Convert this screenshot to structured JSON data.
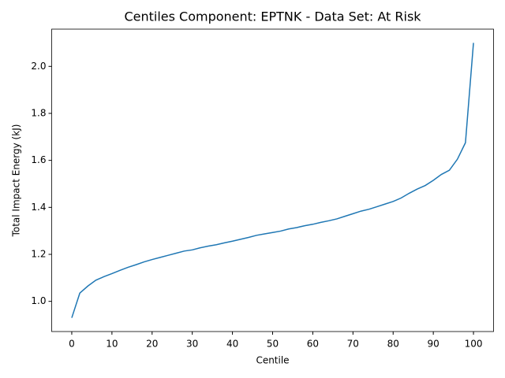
{
  "chart_data": {
    "type": "line",
    "title": "Centiles Component: EPTNK - Data Set: At Risk",
    "x_label": "Centile",
    "y_label": "Total Impact Energy (kJ)",
    "x": [
      0,
      2,
      4,
      6,
      8,
      10,
      12,
      14,
      16,
      18,
      20,
      22,
      24,
      26,
      28,
      30,
      32,
      34,
      36,
      38,
      40,
      42,
      44,
      46,
      48,
      50,
      52,
      54,
      56,
      58,
      60,
      62,
      64,
      66,
      68,
      70,
      72,
      74,
      76,
      78,
      80,
      82,
      84,
      86,
      88,
      90,
      92,
      94,
      96,
      98,
      100
    ],
    "values": [
      0.93,
      1.035,
      1.065,
      1.09,
      1.105,
      1.118,
      1.132,
      1.145,
      1.156,
      1.168,
      1.178,
      1.187,
      1.196,
      1.205,
      1.214,
      1.219,
      1.228,
      1.235,
      1.241,
      1.249,
      1.256,
      1.264,
      1.272,
      1.281,
      1.287,
      1.293,
      1.299,
      1.308,
      1.314,
      1.322,
      1.328,
      1.336,
      1.343,
      1.351,
      1.362,
      1.373,
      1.384,
      1.392,
      1.403,
      1.414,
      1.425,
      1.44,
      1.46,
      1.478,
      1.493,
      1.515,
      1.54,
      1.558,
      1.605,
      1.675,
      2.1
    ],
    "color": "#1f77b4",
    "xlim": [
      -5,
      105
    ],
    "xticks": [
      0,
      10,
      20,
      30,
      40,
      50,
      60,
      70,
      80,
      90,
      100
    ],
    "ylim": [
      0.8715,
      2.1585
    ],
    "yticks": [
      {
        "value": 1.0,
        "label": "1.0"
      },
      {
        "value": 1.2,
        "label": "1.2"
      },
      {
        "value": 1.4,
        "label": "1.4"
      },
      {
        "value": 1.6,
        "label": "1.6"
      },
      {
        "value": 1.8,
        "label": "1.8"
      },
      {
        "value": 2.0,
        "label": "2.0"
      }
    ],
    "grid": false
  }
}
